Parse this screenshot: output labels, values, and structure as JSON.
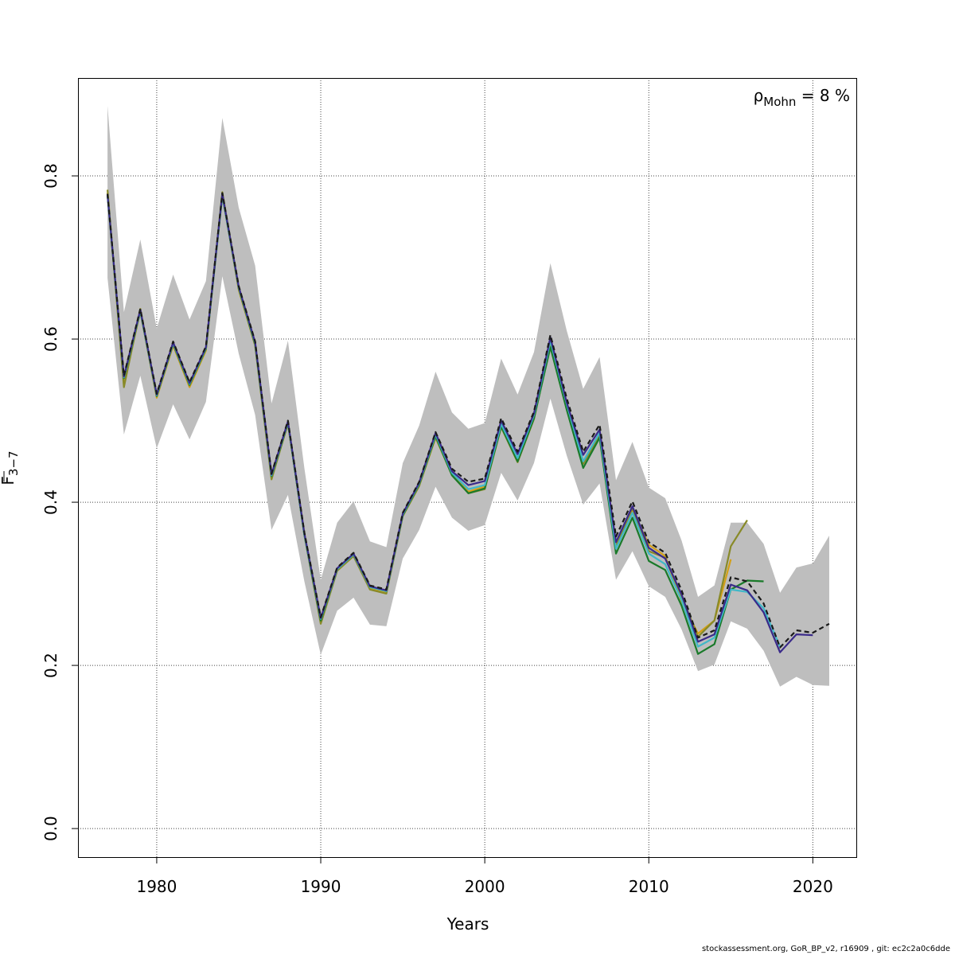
{
  "chart_data": {
    "type": "line",
    "xlabel": "Years",
    "ylabel": {
      "base": "F",
      "sub": "3−7"
    },
    "xlim": [
      1975.2,
      2022.7
    ],
    "ylim": [
      -0.035,
      0.92
    ],
    "x_ticks": [
      1980,
      1990,
      2000,
      2010,
      2020
    ],
    "y_ticks": [
      0.0,
      0.2,
      0.4,
      0.6,
      0.8
    ],
    "x_tick_labels": [
      "1980",
      "1990",
      "2000",
      "2010",
      "2020"
    ],
    "y_tick_labels": [
      "0.0",
      "0.2",
      "0.4",
      "0.6",
      "0.8"
    ],
    "grid": true,
    "annotation": {
      "prefix": "ρ",
      "sub": "Mohn",
      "suffix": " = 8 %",
      "position": "top-right"
    },
    "band": {
      "x": [
        1977,
        1978,
        1979,
        1980,
        1981,
        1982,
        1983,
        1984,
        1985,
        1986,
        1987,
        1988,
        1989,
        1990,
        1991,
        1992,
        1993,
        1994,
        1995,
        1996,
        1997,
        1998,
        1999,
        2000,
        2001,
        2002,
        2003,
        2004,
        2005,
        2006,
        2007,
        2008,
        2009,
        2010,
        2011,
        2012,
        2013,
        2014,
        2015,
        2016,
        2017,
        2018,
        2019,
        2020,
        2021
      ],
      "lower": [
        0.675,
        0.483,
        0.555,
        0.466,
        0.52,
        0.477,
        0.523,
        0.677,
        0.582,
        0.507,
        0.366,
        0.409,
        0.303,
        0.213,
        0.267,
        0.283,
        0.25,
        0.248,
        0.331,
        0.366,
        0.419,
        0.381,
        0.365,
        0.372,
        0.436,
        0.402,
        0.448,
        0.527,
        0.457,
        0.397,
        0.423,
        0.305,
        0.34,
        0.297,
        0.284,
        0.244,
        0.193,
        0.201,
        0.254,
        0.245,
        0.218,
        0.174,
        0.186,
        0.176,
        0.175
      ],
      "upper": [
        0.886,
        0.633,
        0.722,
        0.613,
        0.679,
        0.624,
        0.671,
        0.871,
        0.761,
        0.69,
        0.521,
        0.598,
        0.442,
        0.305,
        0.375,
        0.401,
        0.352,
        0.345,
        0.448,
        0.494,
        0.56,
        0.51,
        0.49,
        0.497,
        0.576,
        0.532,
        0.584,
        0.693,
        0.61,
        0.539,
        0.578,
        0.427,
        0.474,
        0.418,
        0.405,
        0.353,
        0.284,
        0.298,
        0.375,
        0.375,
        0.349,
        0.289,
        0.32,
        0.325,
        0.359
      ]
    },
    "series": [
      {
        "color": "#d4a017",
        "dashed": false,
        "x": [
          1977,
          1978,
          1979,
          1980,
          1981,
          1982,
          1983,
          1984,
          1985,
          1986,
          1987,
          1988,
          1989,
          1990,
          1991,
          1992,
          1993,
          1994,
          1995,
          1996,
          1997,
          1998,
          1999,
          2000,
          2001,
          2002,
          2003,
          2004,
          2005,
          2006,
          2007,
          2008,
          2009,
          2010,
          2011,
          2012,
          2013,
          2014,
          2015
        ],
        "values": [
          0.779,
          0.544,
          0.634,
          0.528,
          0.592,
          0.541,
          0.586,
          0.778,
          0.66,
          0.592,
          0.429,
          0.496,
          0.362,
          0.253,
          0.316,
          0.334,
          0.295,
          0.29,
          0.383,
          0.42,
          0.479,
          0.434,
          0.413,
          0.419,
          0.493,
          0.452,
          0.503,
          0.595,
          0.518,
          0.449,
          0.483,
          0.35,
          0.391,
          0.348,
          0.334,
          0.278,
          0.239,
          0.255,
          0.33
        ]
      },
      {
        "color": "#888a28",
        "dashed": false,
        "x": [
          1977,
          1978,
          1979,
          1980,
          1981,
          1982,
          1983,
          1984,
          1985,
          1986,
          1987,
          1988,
          1989,
          1990,
          1991,
          1992,
          1993,
          1994,
          1995,
          1996,
          1997,
          1998,
          1999,
          2000,
          2001,
          2002,
          2003,
          2004,
          2005,
          2006,
          2007,
          2008,
          2009,
          2010,
          2011,
          2012,
          2013,
          2014,
          2015,
          2016
        ],
        "values": [
          0.783,
          0.541,
          0.637,
          0.53,
          0.594,
          0.543,
          0.588,
          0.78,
          0.662,
          0.592,
          0.428,
          0.497,
          0.36,
          0.251,
          0.316,
          0.334,
          0.293,
          0.288,
          0.383,
          0.42,
          0.48,
          0.433,
          0.411,
          0.416,
          0.492,
          0.449,
          0.502,
          0.593,
          0.516,
          0.447,
          0.481,
          0.345,
          0.393,
          0.34,
          0.332,
          0.285,
          0.235,
          0.255,
          0.346,
          0.378
        ]
      },
      {
        "color": "#1a7a2a",
        "dashed": false,
        "x": [
          1977,
          1978,
          1979,
          1980,
          1981,
          1982,
          1983,
          1984,
          1985,
          1986,
          1987,
          1988,
          1989,
          1990,
          1991,
          1992,
          1993,
          1994,
          1995,
          1996,
          1997,
          1998,
          1999,
          2000,
          2001,
          2002,
          2003,
          2004,
          2005,
          2006,
          2007,
          2008,
          2009,
          2010,
          2011,
          2012,
          2013,
          2014,
          2015,
          2016,
          2017
        ],
        "values": [
          0.776,
          0.552,
          0.634,
          0.53,
          0.594,
          0.544,
          0.588,
          0.776,
          0.662,
          0.594,
          0.432,
          0.497,
          0.36,
          0.255,
          0.318,
          0.336,
          0.296,
          0.291,
          0.384,
          0.422,
          0.481,
          0.433,
          0.411,
          0.417,
          0.493,
          0.45,
          0.503,
          0.59,
          0.513,
          0.442,
          0.479,
          0.337,
          0.381,
          0.328,
          0.317,
          0.273,
          0.214,
          0.226,
          0.293,
          0.304,
          0.303
        ]
      },
      {
        "color": "#40b8c8",
        "dashed": false,
        "x": [
          1977,
          1978,
          1979,
          1980,
          1981,
          1982,
          1983,
          1984,
          1985,
          1986,
          1987,
          1988,
          1989,
          1990,
          1991,
          1992,
          1993,
          1994,
          1995,
          1996,
          1997,
          1998,
          1999,
          2000,
          2001,
          2002,
          2003,
          2004,
          2005,
          2006,
          2007,
          2008,
          2009,
          2010,
          2011,
          2012,
          2013,
          2014,
          2015,
          2016,
          2017,
          2018
        ],
        "values": [
          0.777,
          0.553,
          0.635,
          0.531,
          0.595,
          0.545,
          0.589,
          0.777,
          0.663,
          0.595,
          0.433,
          0.498,
          0.361,
          0.257,
          0.318,
          0.336,
          0.296,
          0.291,
          0.385,
          0.423,
          0.483,
          0.436,
          0.416,
          0.421,
          0.496,
          0.454,
          0.507,
          0.598,
          0.52,
          0.45,
          0.485,
          0.343,
          0.387,
          0.337,
          0.324,
          0.28,
          0.223,
          0.234,
          0.293,
          0.29,
          0.27,
          0.223
        ]
      },
      {
        "color": "#3a2a8a",
        "dashed": false,
        "x": [
          1977,
          1978,
          1979,
          1980,
          1981,
          1982,
          1983,
          1984,
          1985,
          1986,
          1987,
          1988,
          1989,
          1990,
          1991,
          1992,
          1993,
          1994,
          1995,
          1996,
          1997,
          1998,
          1999,
          2000,
          2001,
          2002,
          2003,
          2004,
          2005,
          2006,
          2007,
          2008,
          2009,
          2010,
          2011,
          2012,
          2013,
          2014,
          2015,
          2016,
          2017,
          2018,
          2019,
          2020
        ],
        "values": [
          0.777,
          0.554,
          0.636,
          0.532,
          0.596,
          0.546,
          0.59,
          0.778,
          0.664,
          0.596,
          0.434,
          0.499,
          0.362,
          0.258,
          0.319,
          0.337,
          0.297,
          0.292,
          0.386,
          0.424,
          0.485,
          0.438,
          0.421,
          0.426,
          0.5,
          0.459,
          0.509,
          0.602,
          0.522,
          0.458,
          0.489,
          0.351,
          0.395,
          0.344,
          0.331,
          0.287,
          0.229,
          0.238,
          0.299,
          0.292,
          0.265,
          0.216,
          0.238,
          0.237
        ]
      },
      {
        "color": "#1a1a1a",
        "dashed": true,
        "x": [
          1977,
          1978,
          1979,
          1980,
          1981,
          1982,
          1983,
          1984,
          1985,
          1986,
          1987,
          1988,
          1989,
          1990,
          1991,
          1992,
          1993,
          1994,
          1995,
          1996,
          1997,
          1998,
          1999,
          2000,
          2001,
          2002,
          2003,
          2004,
          2005,
          2006,
          2007,
          2008,
          2009,
          2010,
          2011,
          2012,
          2013,
          2014,
          2015,
          2016,
          2017,
          2018,
          2019,
          2020,
          2021
        ],
        "values": [
          0.778,
          0.555,
          0.637,
          0.533,
          0.597,
          0.547,
          0.591,
          0.779,
          0.665,
          0.597,
          0.435,
          0.5,
          0.363,
          0.259,
          0.32,
          0.338,
          0.298,
          0.293,
          0.387,
          0.425,
          0.486,
          0.441,
          0.425,
          0.429,
          0.503,
          0.462,
          0.511,
          0.605,
          0.527,
          0.462,
          0.495,
          0.358,
          0.401,
          0.351,
          0.338,
          0.292,
          0.234,
          0.243,
          0.308,
          0.303,
          0.276,
          0.222,
          0.243,
          0.24,
          0.251
        ]
      }
    ]
  },
  "footer": "stockassessment.org, GoR_BP_v2, r16909 , git: ec2c2a0c6dde"
}
